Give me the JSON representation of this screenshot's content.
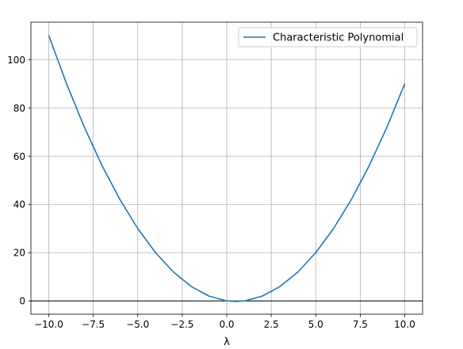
{
  "chart_data": {
    "type": "line",
    "title": "",
    "xlabel": "λ",
    "ylabel": "",
    "xlim": [
      -11.0,
      11.0
    ],
    "ylim": [
      -5.5,
      115.5
    ],
    "xticks": [
      -10.0,
      -7.5,
      -5.0,
      -2.5,
      0.0,
      2.5,
      5.0,
      7.5,
      10.0
    ],
    "xtick_labels": [
      "−10.0",
      "−7.5",
      "−5.0",
      "−2.5",
      "0.0",
      "2.5",
      "5.0",
      "7.5",
      "10.0"
    ],
    "yticks": [
      0,
      20,
      40,
      60,
      80,
      100
    ],
    "ytick_labels": [
      "0",
      "20",
      "40",
      "60",
      "80",
      "100"
    ],
    "grid": true,
    "legend_position": "top-right",
    "reference_line": {
      "y": 0,
      "color": "#000000"
    },
    "series": [
      {
        "name": "Characteristic Polynomial",
        "color": "#1f77b4",
        "x": [
          -10,
          -9,
          -8,
          -7,
          -6,
          -5,
          -4,
          -3,
          -2,
          -1,
          0,
          0.5,
          1,
          2,
          3,
          4,
          5,
          6,
          7,
          8,
          9,
          10
        ],
        "y": [
          110,
          90,
          72,
          56,
          42,
          30,
          20,
          12,
          6,
          2,
          0,
          -0.25,
          0,
          2,
          6,
          12,
          20,
          30,
          42,
          56,
          72,
          90
        ]
      }
    ]
  }
}
